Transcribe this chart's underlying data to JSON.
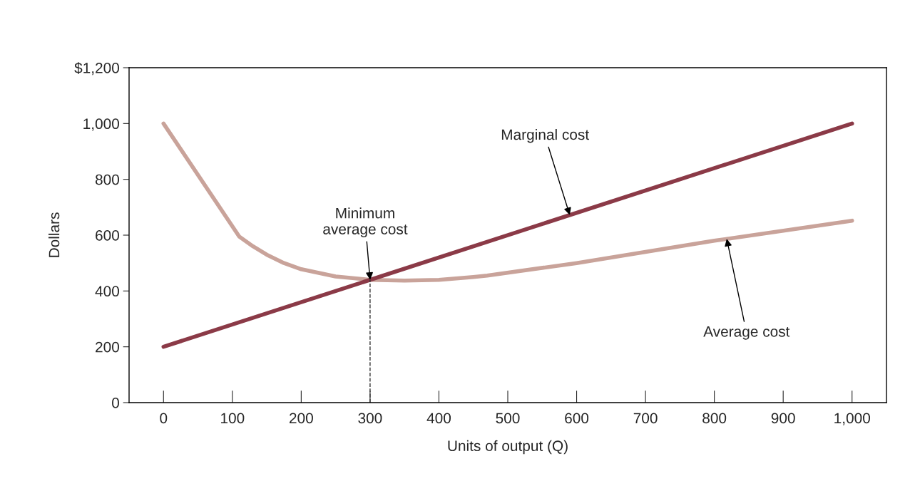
{
  "chart_data": {
    "type": "line",
    "xlabel": "Units of output (Q)",
    "ylabel": "Dollars",
    "xlim": [
      -50,
      1050
    ],
    "ylim": [
      0,
      1200
    ],
    "xticks": [
      0,
      100,
      200,
      300,
      400,
      500,
      600,
      700,
      800,
      900,
      {
        "value": 1000,
        "label": "1,000"
      }
    ],
    "yticks": [
      0,
      200,
      400,
      600,
      800,
      {
        "value": 1000,
        "label": "1,000"
      },
      {
        "value": 1200,
        "label": "$1,200"
      }
    ],
    "grid": false,
    "legend": false,
    "series": [
      {
        "color": "#c9a39a",
        "x": [
          0,
          110,
          130,
          150,
          175,
          200,
          250,
          300,
          350,
          400,
          450,
          470,
          600,
          800,
          1000
        ],
        "values": [
          1000,
          595,
          560,
          530,
          500,
          478,
          452,
          440,
          437,
          440,
          450,
          455,
          500,
          580,
          652
        ]
      },
      {
        "color": "#8b3a47",
        "x": [
          0,
          1000
        ],
        "values": [
          200,
          1000
        ]
      },
      {
        "color": "#333333",
        "x": [
          300,
          300
        ],
        "values": [
          0,
          440
        ],
        "line_style": "dashed"
      }
    ],
    "annotations": [
      {
        "text": "Marginal cost",
        "x": 590,
        "y": 672
      },
      {
        "text": "Minimum\naverage cost",
        "x": 300,
        "y": 440
      },
      {
        "text": "Average cost",
        "x": 818,
        "y": 587
      }
    ]
  }
}
